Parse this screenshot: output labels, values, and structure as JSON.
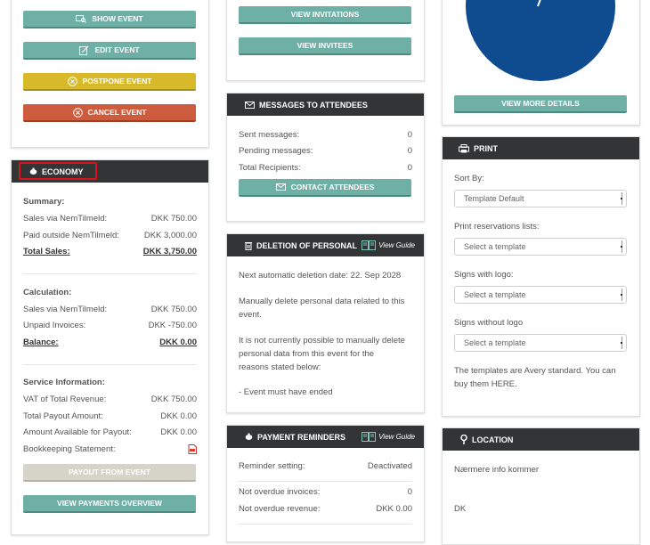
{
  "left": {
    "actions": {
      "show_event": "SHOW EVENT",
      "edit_event": "EDIT EVENT",
      "postpone_event": "POSTPONE EVENT",
      "cancel_event": "CANCEL EVENT"
    },
    "economy": {
      "title": "ECONOMY",
      "summary_title": "Summary:",
      "summary": [
        {
          "label": "Sales via NemTilmeld:",
          "value": "DKK 750.00"
        },
        {
          "label": "Paid outside NemTilmeld:",
          "value": "DKK 3,000.00"
        },
        {
          "label": "Total Sales:",
          "value": "DKK 3,750.00"
        }
      ],
      "calculation_title": "Calculation:",
      "calculation": [
        {
          "label": "Sales via NemTilmeld:",
          "value": "DKK 750.00"
        },
        {
          "label": "Unpaid Invoices:",
          "value": "DKK -750.00"
        },
        {
          "label": "Balance:",
          "value": "DKK 0.00"
        }
      ],
      "service_title": "Service Information:",
      "service": [
        {
          "label": "VAT of Total Revenue:",
          "value": "DKK 750.00"
        },
        {
          "label": "Total Payout Amount:",
          "value": "DKK 0.00"
        },
        {
          "label": "Amount Available for Payout:",
          "value": "DKK 0.00"
        },
        {
          "label": "Bookkeeping Statement:",
          "value": ""
        }
      ],
      "payout_button": "PAYOUT FROM EVENT",
      "payments_button": "VIEW PAYMENTS OVERVIEW"
    }
  },
  "middle": {
    "invitations_button": "VIEW INVITATIONS",
    "invitees_button": "VIEW INVITEES",
    "messages": {
      "title": "MESSAGES TO ATTENDEES",
      "rows": [
        {
          "label": "Sent messages:",
          "value": "0"
        },
        {
          "label": "Pending messages:",
          "value": "0"
        },
        {
          "label": "Total Recipients:",
          "value": "0"
        }
      ],
      "contact_button": "CONTACT ATTENDEES"
    },
    "deletion": {
      "title": "DELETION OF PERSONAL",
      "guide": "View Guide",
      "next_deletion": "Next automatic deletion date: 22. Sep 2028",
      "manual_line1": "Manually delete personal data related to this",
      "manual_line2": "event.",
      "not_possible_line1": "It is not currently possible to manually delete",
      "not_possible_line2": "personal data from this event for the",
      "not_possible_line3": "reasons stated below:",
      "reason": "- Event must have ended"
    },
    "reminders": {
      "title": "PAYMENT REMINDERS",
      "guide": "View Guide",
      "setting_label": "Reminder setting:",
      "setting_value": "Deactivated",
      "rows": [
        {
          "label": "Not overdue invoices:",
          "value": "0"
        },
        {
          "label": "Not overdue revenue:",
          "value": "DKK 0.00"
        }
      ]
    }
  },
  "right": {
    "pie_color": "#0e4c8f",
    "details_button": "VIEW MORE DETAILS",
    "print": {
      "title": "PRINT",
      "sort_label": "Sort By:",
      "sort_value": "Template Default",
      "reservations_label": "Print reservations lists:",
      "reservations_value": "Select a template",
      "signs_logo_label": "Signs with logo:",
      "signs_logo_value": "Select a template",
      "signs_nologo_label": "Signs without logo",
      "signs_nologo_value": "Select a template",
      "note_line1": "The templates are Avery standard. You can",
      "note_line2_prefix": "buy them ",
      "note_link": "HERE",
      "note_line2_suffix": "."
    },
    "location": {
      "title": "LOCATION",
      "info": "Nærmere info kommer",
      "country": "DK"
    }
  }
}
